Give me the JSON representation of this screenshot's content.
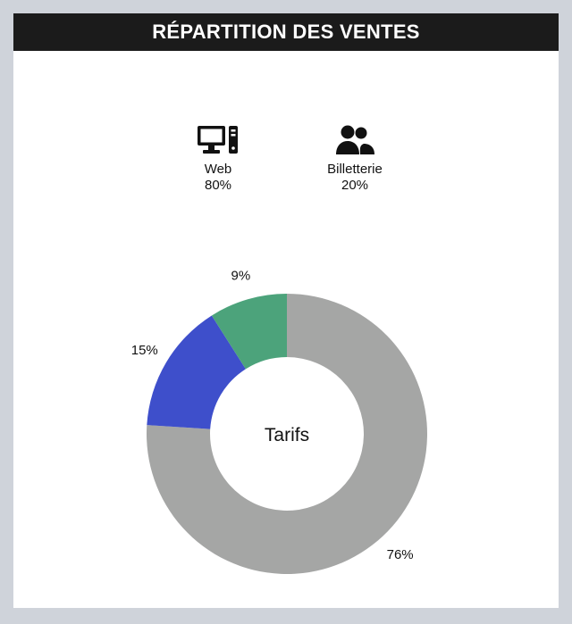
{
  "header": {
    "title": "RÉPARTITION DES VENTES"
  },
  "channels": [
    {
      "icon": "desktop-computer-icon",
      "label": "Web",
      "value": "80%"
    },
    {
      "icon": "users-group-icon",
      "label": "Billetterie",
      "value": "20%"
    }
  ],
  "chart_data": {
    "type": "pie",
    "title": "",
    "center_label": "Tarifs",
    "slices": [
      {
        "value": 76,
        "label": "76%",
        "color": "#a5a6a5"
      },
      {
        "value": 15,
        "label": "15%",
        "color": "#3e4fcb"
      },
      {
        "value": 9,
        "label": "9%",
        "color": "#4ca37b"
      }
    ]
  }
}
